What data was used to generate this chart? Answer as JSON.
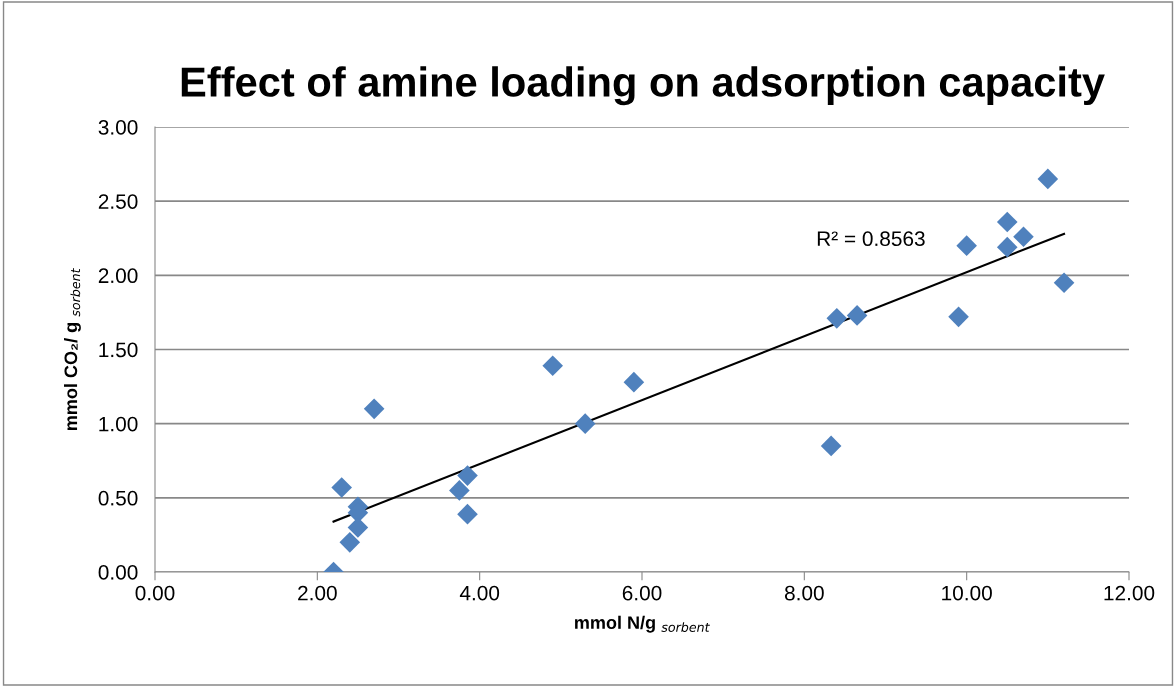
{
  "chart_data": {
    "type": "scatter",
    "title": "Effect of amine loading on adsorption capacity",
    "xlabel": "mmol N/g $_{sorbent}$",
    "ylabel": "mmol CO₂/ g $_{sorbent}$",
    "series": [
      {
        "color": "#4f81bd",
        "marker": "diamond",
        "x": [
          2.2,
          2.3,
          2.4,
          2.5,
          2.5,
          2.5,
          2.7,
          3.75,
          3.85,
          3.85,
          4.9,
          5.3,
          5.9,
          8.33,
          8.4,
          8.65,
          9.9,
          10.0,
          10.5,
          10.5,
          10.7,
          11.0,
          11.2
        ],
        "values": [
          0.0,
          0.57,
          0.2,
          0.44,
          0.4,
          0.3,
          1.1,
          0.55,
          0.65,
          0.39,
          1.39,
          1.0,
          1.28,
          0.85,
          1.71,
          1.73,
          1.72,
          2.2,
          2.36,
          2.19,
          2.26,
          2.65,
          1.95
        ]
      },
      {
        "type": "line",
        "color": "#000000",
        "marker": "none",
        "x": [
          2.2,
          11.2
        ],
        "values": [
          0.34,
          2.28
        ]
      }
    ],
    "annotations": [
      "R² = 0.8563"
    ],
    "xlim": [
      0,
      12
    ],
    "xticks": [
      {
        "value": 0,
        "label": "0.00"
      },
      {
        "value": 2,
        "label": "2.00"
      },
      {
        "value": 4,
        "label": "4.00"
      },
      {
        "value": 6,
        "label": "6.00"
      },
      {
        "value": 8,
        "label": "8.00"
      },
      {
        "value": 10,
        "label": "10.00"
      },
      {
        "value": 12,
        "label": "12.00"
      }
    ],
    "ylim": [
      0,
      3
    ],
    "yticks": [
      {
        "value": 0,
        "label": "0.00"
      },
      {
        "value": 0.5,
        "label": "0.50"
      },
      {
        "value": 1,
        "label": "1.00"
      },
      {
        "value": 1.5,
        "label": "1.50"
      },
      {
        "value": 2,
        "label": "2.00"
      },
      {
        "value": 2.5,
        "label": "2.50"
      },
      {
        "value": 3,
        "label": "3.00"
      }
    ],
    "grid": "y"
  }
}
